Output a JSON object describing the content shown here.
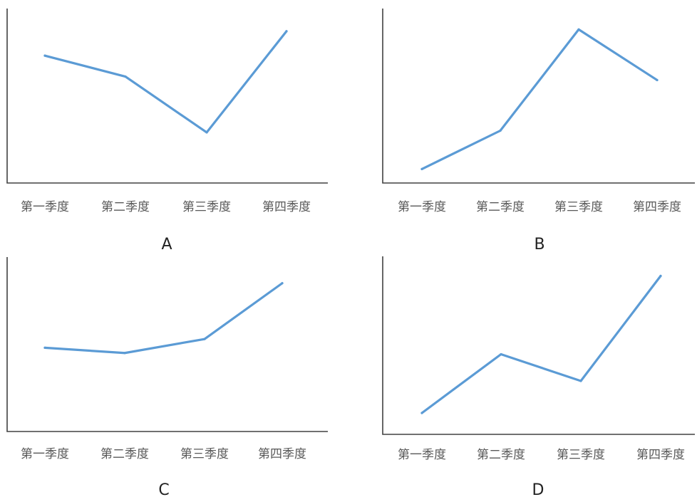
{
  "line_color": "#5b9bd5",
  "chart_data": [
    {
      "type": "line",
      "panel": "A",
      "categories": [
        "第一季度",
        "第二季度",
        "第三季度",
        "第四季度"
      ],
      "values": [
        73,
        61,
        29,
        87
      ],
      "ylim": [
        0,
        100
      ],
      "grid": false,
      "legend": "none"
    },
    {
      "type": "line",
      "panel": "B",
      "categories": [
        "第一季度",
        "第二季度",
        "第三季度",
        "第四季度"
      ],
      "values": [
        8,
        30,
        88,
        59
      ],
      "ylim": [
        0,
        100
      ],
      "grid": false,
      "legend": "none"
    },
    {
      "type": "line",
      "panel": "C",
      "categories": [
        "第一季度",
        "第二季度",
        "第三季度",
        "第四季度"
      ],
      "values": [
        48,
        45,
        53,
        85
      ],
      "ylim": [
        0,
        100
      ],
      "grid": false,
      "legend": "none"
    },
    {
      "type": "line",
      "panel": "D",
      "categories": [
        "第一季度",
        "第二季度",
        "第三季度",
        "第四季度"
      ],
      "values": [
        12,
        45,
        30,
        89
      ],
      "ylim": [
        0,
        100
      ],
      "grid": false,
      "legend": "none"
    }
  ]
}
